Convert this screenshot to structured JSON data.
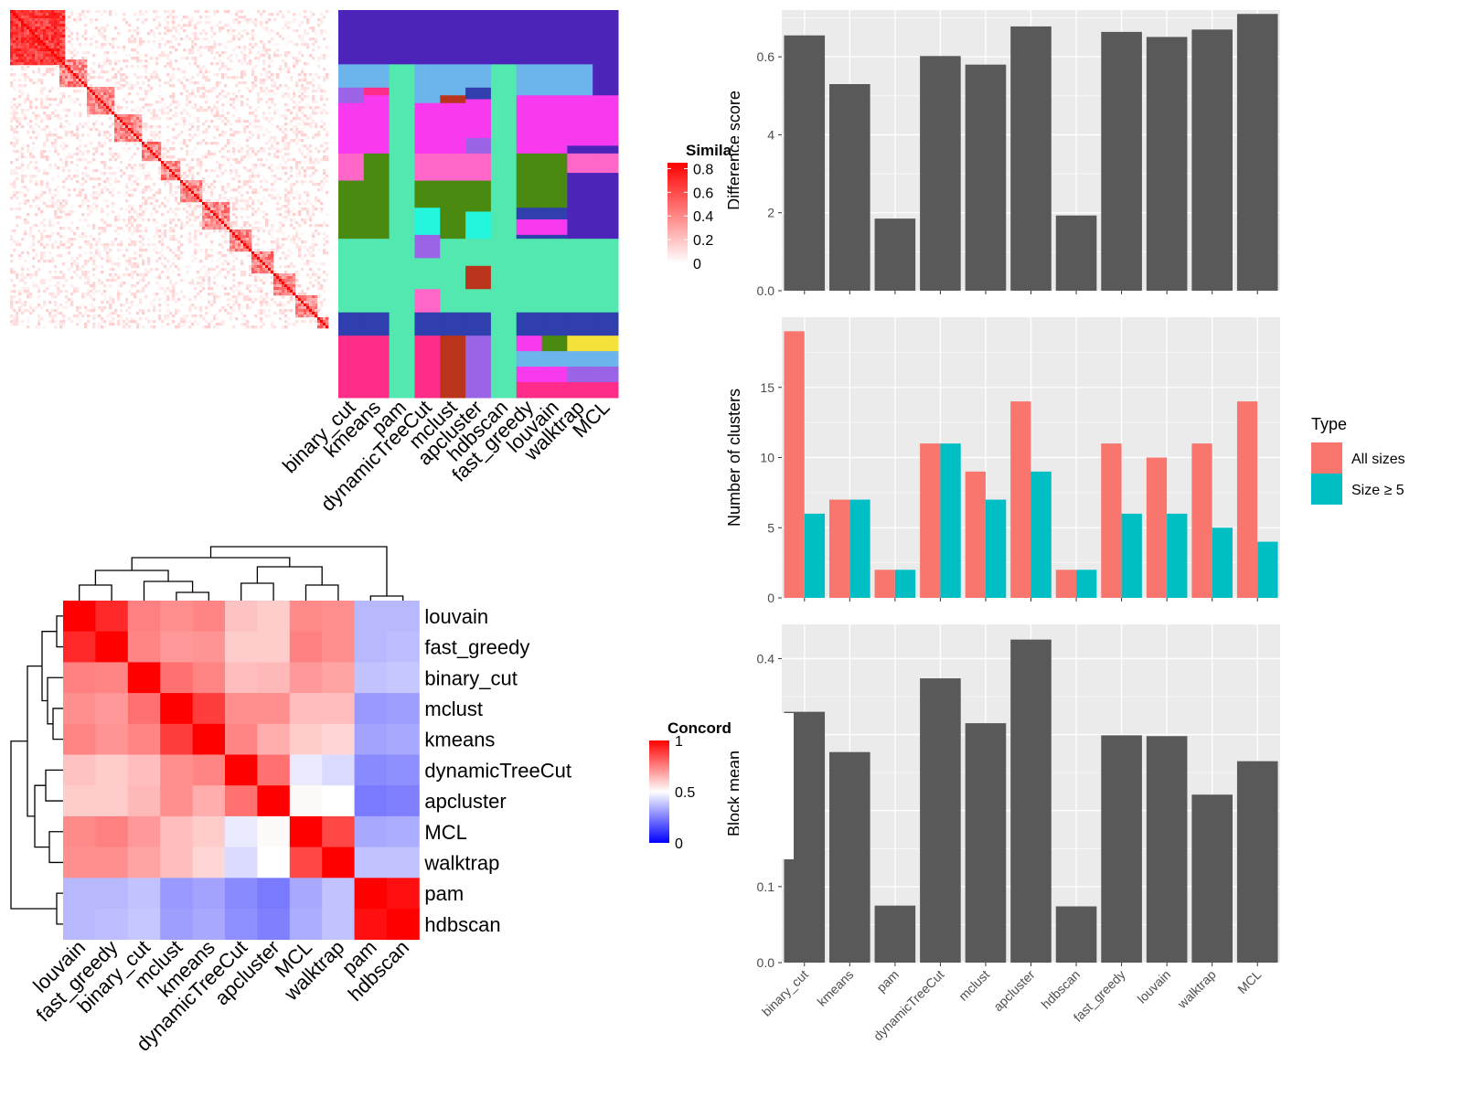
{
  "colors": {
    "bar": "#595959",
    "panel_bg": "#ebebeb",
    "grid": "#ffffff",
    "all_sizes": "#F8766D",
    "size_ge5": "#00BFC4",
    "sim_high": "#ff0000",
    "conc_high": "#ff0000",
    "conc_low": "#0000ff"
  },
  "similarity_heatmap": {
    "legend_title": "Simila",
    "legend_ticks": [
      "0.8",
      "0.6",
      "0.4",
      "0.2",
      "0"
    ]
  },
  "cluster_assignment": {
    "methods": [
      "binary_cut",
      "kmeans",
      "pam",
      "dynamicTreeCut",
      "mclust",
      "apcluster",
      "hdbscan",
      "fast_greedy",
      "louvain",
      "walktrap",
      "MCL"
    ]
  },
  "concordance_heatmap": {
    "legend_title": "Concord",
    "legend_ticks": [
      "1",
      "0.5",
      "0"
    ]
  },
  "chart_data": [
    {
      "type": "heatmap",
      "name_printed": "",
      "rows": [
        "louvain",
        "fast_greedy",
        "binary_cut",
        "mclust",
        "kmeans",
        "dynamicTreeCut",
        "apcluster",
        "MCL",
        "walktrap",
        "pam",
        "hdbscan"
      ],
      "columns": [
        "louvain",
        "fast_greedy",
        "binary_cut",
        "mclust",
        "kmeans",
        "dynamicTreeCut",
        "apcluster",
        "MCL",
        "walktrap",
        "pam",
        "hdbscan"
      ],
      "legend_title": "Concord",
      "scale": [
        0,
        1
      ],
      "values": [
        [
          1.0,
          0.92,
          0.75,
          0.72,
          0.74,
          0.62,
          0.6,
          0.73,
          0.72,
          0.36,
          0.36
        ],
        [
          0.92,
          1.0,
          0.74,
          0.7,
          0.71,
          0.6,
          0.6,
          0.75,
          0.72,
          0.36,
          0.37
        ],
        [
          0.75,
          0.74,
          1.0,
          0.78,
          0.74,
          0.63,
          0.64,
          0.7,
          0.68,
          0.38,
          0.39
        ],
        [
          0.72,
          0.7,
          0.78,
          1.0,
          0.88,
          0.72,
          0.72,
          0.63,
          0.63,
          0.3,
          0.31
        ],
        [
          0.74,
          0.71,
          0.74,
          0.88,
          1.0,
          0.74,
          0.66,
          0.6,
          0.58,
          0.32,
          0.33
        ],
        [
          0.62,
          0.6,
          0.63,
          0.72,
          0.74,
          1.0,
          0.78,
          0.46,
          0.43,
          0.27,
          0.28
        ],
        [
          0.6,
          0.6,
          0.64,
          0.72,
          0.66,
          0.78,
          1.0,
          0.51,
          0.5,
          0.24,
          0.25
        ],
        [
          0.73,
          0.75,
          0.7,
          0.63,
          0.6,
          0.46,
          0.51,
          1.0,
          0.86,
          0.33,
          0.34
        ],
        [
          0.72,
          0.72,
          0.68,
          0.63,
          0.58,
          0.43,
          0.5,
          0.86,
          1.0,
          0.38,
          0.38
        ],
        [
          0.36,
          0.36,
          0.38,
          0.3,
          0.32,
          0.27,
          0.24,
          0.33,
          0.38,
          1.0,
          0.97
        ],
        [
          0.36,
          0.37,
          0.39,
          0.31,
          0.33,
          0.28,
          0.25,
          0.34,
          0.38,
          0.97,
          1.0
        ]
      ]
    },
    {
      "type": "bar",
      "categories": [
        "binary_cut",
        "kmeans",
        "pam",
        "dynamicTreeCut",
        "mclust",
        "apcluster",
        "hdbscan",
        "fast_greedy",
        "louvain",
        "walktrap",
        "MCL"
      ],
      "values": [
        0.655,
        0.53,
        0.185,
        0.602,
        0.58,
        0.678,
        0.193,
        0.664,
        0.651,
        0.67,
        0.71
      ],
      "title": "",
      "xlabel": "",
      "ylabel": "Difference score",
      "ylim": [
        0,
        0.72
      ],
      "yticks": [
        "0.0",
        "0.2",
        "0.4",
        "0.6"
      ],
      "grid": true
    },
    {
      "type": "bar",
      "categories": [
        "binary_cut",
        "kmeans",
        "pam",
        "dynamicTreeCut",
        "mclust",
        "apcluster",
        "hdbscan",
        "fast_greedy",
        "louvain",
        "walktrap",
        "MCL"
      ],
      "series": [
        {
          "name": "All sizes",
          "values": [
            19,
            7,
            2,
            11,
            9,
            14,
            2,
            11,
            10,
            11,
            14
          ]
        },
        {
          "name": "Size ≥ 5",
          "values": [
            6,
            7,
            2,
            11,
            7,
            9,
            2,
            6,
            6,
            5,
            4
          ]
        }
      ],
      "title": "",
      "xlabel": "",
      "ylabel": "Number of clusters",
      "ylim": [
        0,
        20
      ],
      "yticks": [
        "0",
        "5",
        "10",
        "15"
      ],
      "legend_title": "Type",
      "legend_position": "right",
      "grid": true
    },
    {
      "type": "bar",
      "categories": [
        "binary_cut",
        "kmeans",
        "pam",
        "dynamicTreeCut",
        "mclust",
        "apcluster",
        "hdbscan",
        "fast_greedy",
        "louvain",
        "walktrap",
        "MCL"
      ],
      "values": [
        0.33,
        0.277,
        0.075,
        0.374,
        0.315,
        0.425,
        0.074,
        0.299,
        0.298,
        0.221,
        0.265
      ],
      "title": "",
      "xlabel": "",
      "ylabel": "Block mean",
      "ylim": [
        0,
        0.445
      ],
      "yticks": [
        "0.0",
        "0.1",
        "0.2",
        "0.3",
        "0.4"
      ],
      "grid": true
    }
  ]
}
